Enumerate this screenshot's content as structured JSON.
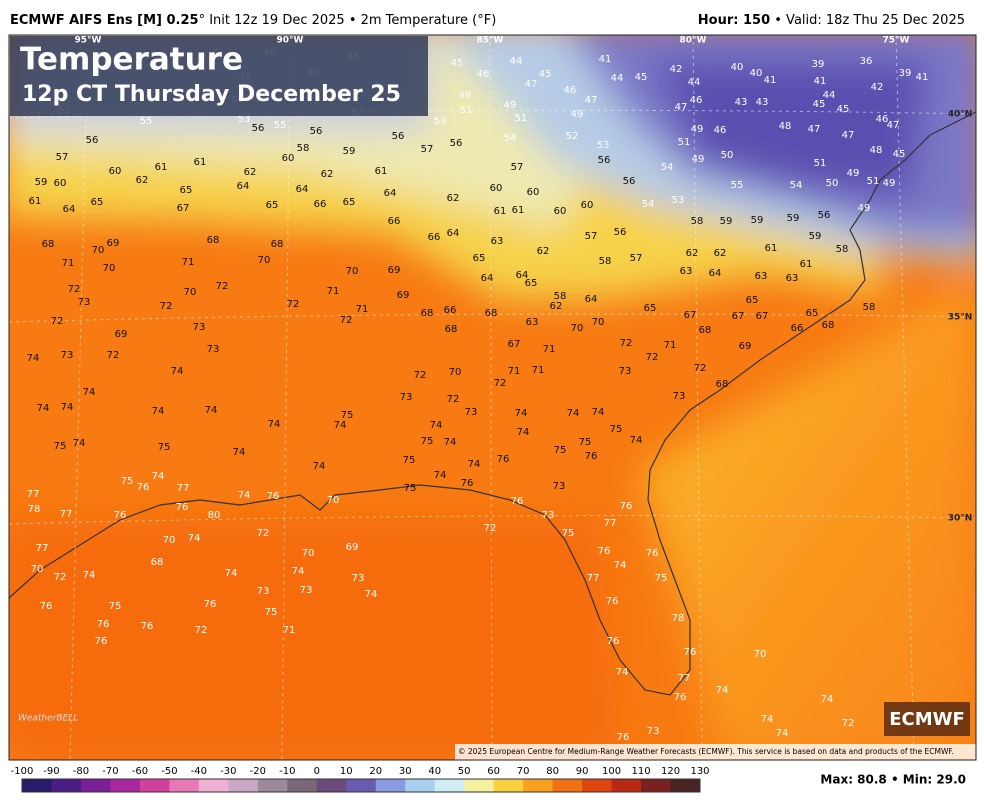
{
  "header": {
    "model": "ECMWF AIFS Ens [M] 0.25",
    "info": "° Init 12z 19 Dec 2025 • 2m Temperature (°F)",
    "hour": "Hour: 150",
    "valid": " • Valid: 18z Thu 25 Dec 2025"
  },
  "title": "Temperature",
  "subtitle": "12p CT Thursday December 25",
  "grid_labels": [
    "95°W",
    "90°W",
    "85°W",
    "80°W",
    "75°W",
    "40°N",
    "35°N",
    "30°N"
  ],
  "stations": [
    45,
    48,
    46,
    47,
    51,
    55,
    51,
    53,
    56,
    55,
    56,
    53,
    45,
    46,
    49,
    51,
    53,
    44,
    47,
    45,
    49,
    51,
    54,
    46,
    47,
    49,
    52,
    41,
    44,
    45,
    42,
    44,
    47,
    46,
    40,
    40,
    41,
    43,
    43,
    39,
    41,
    36,
    39,
    41,
    42,
    44,
    45,
    45,
    46,
    47,
    48,
    47,
    47,
    48,
    45,
    46,
    49,
    51,
    49,
    50,
    51,
    50,
    49,
    51,
    49,
    49,
    53,
    56,
    56,
    57,
    56,
    56,
    57,
    60,
    61,
    61,
    59,
    60,
    62,
    65,
    64,
    62,
    61,
    64,
    65,
    67,
    65,
    60,
    58,
    59,
    62,
    64,
    66,
    65,
    61,
    64,
    62,
    60,
    60,
    61,
    61,
    60,
    60,
    57,
    56,
    54,
    54,
    53,
    55,
    54,
    59,
    56,
    58,
    61,
    59,
    59,
    59,
    58,
    62,
    62,
    61,
    63,
    64,
    63,
    63,
    65,
    67,
    67,
    65,
    58,
    66,
    68,
    69,
    68,
    67,
    65,
    64,
    58,
    62,
    63,
    57,
    58,
    62,
    56,
    57,
    68,
    70,
    69,
    71,
    70,
    72,
    73,
    72,
    69,
    74,
    73,
    72,
    71,
    68,
    68,
    70,
    70,
    72,
    72,
    73,
    72,
    71,
    70,
    72,
    69,
    69,
    66,
    66,
    64,
    63,
    65,
    64,
    64,
    65,
    68,
    66,
    68,
    68,
    71,
    70,
    70,
    71,
    67,
    72,
    72,
    71,
    73,
    72,
    68,
    73,
    74,
    74,
    75,
    74,
    75,
    76,
    75,
    74,
    74,
    74,
    75,
    74,
    74,
    74,
    73,
    74,
    75,
    74,
    72,
    70,
    73,
    72,
    73,
    74,
    72,
    71,
    71,
    74,
    74,
    75,
    74,
    75,
    74,
    74,
    74,
    74,
    75,
    74,
    76,
    74,
    75,
    76,
    76,
    73,
    76,
    77,
    76,
    74,
    76,
    75,
    77,
    76,
    78,
    76,
    76,
    77,
    76,
    74,
    73,
    76,
    74,
    74,
    74,
    74,
    72,
    70,
    72,
    73,
    75,
    74,
    76,
    77,
    78,
    77,
    76,
    75,
    76,
    77,
    76,
    80,
    77,
    70,
    72,
    74,
    76,
    76,
    76,
    76,
    75,
    76,
    72,
    68,
    70,
    74,
    72,
    74,
    73,
    74,
    73,
    73,
    74,
    75,
    71,
    69,
    70,
    70
  ],
  "colorbar": {
    "ticks": [
      -100,
      -90,
      -80,
      -70,
      -60,
      -50,
      -40,
      -30,
      -20,
      -10,
      0,
      10,
      20,
      30,
      40,
      50,
      60,
      70,
      80,
      90,
      100,
      110,
      120,
      130
    ],
    "colors": [
      "#2a1a6a",
      "#4a1c86",
      "#7a1f98",
      "#a8289e",
      "#d0409f",
      "#e878b8",
      "#f0b0d4",
      "#c8a8c4",
      "#9a8a9a",
      "#786878",
      "#6a4a7a",
      "#6a5ab0",
      "#8a9ae0",
      "#a8d0f0",
      "#d0ecf4",
      "#f4f0a0",
      "#f8d040",
      "#f8a020",
      "#f07014",
      "#e04410",
      "#b82812",
      "#7a2020",
      "#4a2424"
    ]
  },
  "stats": "Max: 80.8 • Min: 29.0",
  "credit": "© 2025 European Centre for Medium-Range Weather Forecasts (ECMWF). This service is based on data and products of the ECMWF.",
  "badge": "ECMWF",
  "logo": "WeatherBELL"
}
